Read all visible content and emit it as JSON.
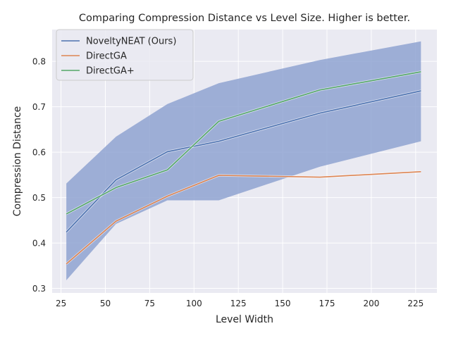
{
  "chart_data": {
    "type": "line",
    "title": "Comparing Compression Distance  vs Level Size. Higher is better.",
    "xlabel": "Level Width",
    "ylabel": "Compression Distance",
    "xlim": [
      20,
      237
    ],
    "ylim": [
      0.29,
      0.87
    ],
    "xticks": [
      25,
      50,
      75,
      100,
      125,
      150,
      175,
      200,
      225
    ],
    "yticks": [
      0.3,
      0.4,
      0.5,
      0.6,
      0.7,
      0.8
    ],
    "grid": true,
    "legend_position": "top-left",
    "x": [
      28,
      56,
      85,
      114,
      171,
      228
    ],
    "band": {
      "series": "NoveltyNEAT (Ours)",
      "lower": [
        0.318,
        0.442,
        0.494,
        0.494,
        0.568,
        0.624
      ],
      "upper": [
        0.531,
        0.634,
        0.706,
        0.752,
        0.803,
        0.844
      ],
      "color": "#8fa3d1"
    },
    "series": [
      {
        "name": "NoveltyNEAT (Ours)",
        "values": [
          0.424,
          0.539,
          0.601,
          0.624,
          0.686,
          0.735
        ],
        "color": "#4c72b0"
      },
      {
        "name": "DirectGA",
        "values": [
          0.354,
          0.448,
          0.503,
          0.549,
          0.545,
          0.557
        ],
        "color": "#dd8452"
      },
      {
        "name": "DirectGA+",
        "values": [
          0.464,
          0.522,
          0.561,
          0.668,
          0.737,
          0.777
        ],
        "color": "#55a868"
      }
    ]
  }
}
